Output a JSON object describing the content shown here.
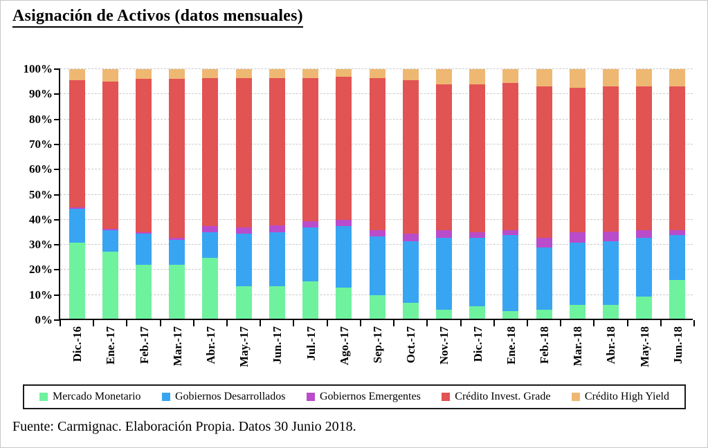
{
  "title": "Asignación de Activos (datos mensuales)",
  "footer": "Fuente: Carmignac. Elaboración Propia. Datos 30 Junio 2018.",
  "chart_data": {
    "type": "bar",
    "stacked": true,
    "title": "Asignación de Activos (datos mensuales)",
    "xlabel": "",
    "ylabel": "",
    "ylim": [
      0,
      100
    ],
    "y_tick_labels": [
      "0%",
      "10%",
      "20%",
      "30%",
      "40%",
      "50%",
      "60%",
      "70%",
      "80%",
      "90%",
      "100%"
    ],
    "grid": "horizontal-dashed",
    "legend_position": "bottom",
    "categories": [
      "Dic.-16",
      "Ene.-17",
      "Feb.-17",
      "Mar.-17",
      "Abr.-17",
      "May.-17",
      "Jun.-17",
      "Jul.-17",
      "Ago.-17",
      "Sep.-17",
      "Oct.-17",
      "Nov.-17",
      "Dic.-17",
      "Ene.-18",
      "Feb.-18",
      "Mar.-18",
      "Abr.-18",
      "May.-18",
      "Jun.-18"
    ],
    "unit": "percent",
    "series": [
      {
        "name": "Mercado Monetario",
        "color": "#6ff29e",
        "values": [
          30.5,
          27,
          21.5,
          21.5,
          24.5,
          13,
          13,
          15,
          12.5,
          9.5,
          6.5,
          3.5,
          5,
          3,
          3.5,
          5.5,
          5.5,
          9,
          15.5
        ]
      },
      {
        "name": "Gobiernos Desarrollados",
        "color": "#38a5f2",
        "values": [
          13.5,
          8.5,
          12.5,
          10,
          10,
          21,
          21.5,
          21.5,
          24.5,
          23.5,
          24.5,
          29,
          27.5,
          30.5,
          25,
          25,
          25.5,
          23.5,
          18
        ]
      },
      {
        "name": "Gobiernos Emergentes",
        "color": "#b94ccb",
        "values": [
          0.5,
          0.5,
          0.5,
          1,
          2.5,
          2.5,
          3,
          2.5,
          2.5,
          2.5,
          3,
          3,
          2,
          2,
          4,
          4,
          4,
          3,
          2
        ]
      },
      {
        "name": "Crédito Invest. Grade",
        "color": "#e25353",
        "values": [
          51,
          59,
          61.5,
          63.5,
          59.5,
          60,
          59,
          57.5,
          57.5,
          61,
          61.5,
          58.5,
          59.5,
          59,
          60.5,
          58,
          58,
          57.5,
          57.5
        ]
      },
      {
        "name": "Crédito High Yield",
        "color": "#eeb873",
        "values": [
          4.5,
          5,
          4,
          4,
          3.5,
          3.5,
          3.5,
          3.5,
          3,
          3.5,
          4.5,
          6,
          6,
          5.5,
          7,
          7.5,
          7,
          7,
          7
        ]
      }
    ]
  }
}
